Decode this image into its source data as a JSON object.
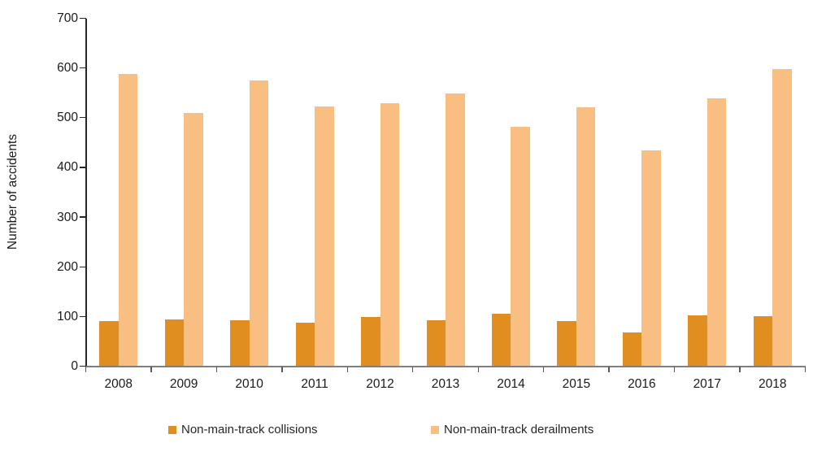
{
  "chart_data": {
    "type": "bar",
    "title": "",
    "xlabel": "",
    "ylabel": "Number of accidents",
    "ylim": [
      0,
      700
    ],
    "ytick_step": 100,
    "grid": "off",
    "legend_position": "bottom",
    "categories": [
      "2008",
      "2009",
      "2010",
      "2011",
      "2012",
      "2013",
      "2014",
      "2015",
      "2016",
      "2017",
      "2018"
    ],
    "series": [
      {
        "name": "Non-main-track collisions",
        "color": "#E08E20",
        "values": [
          91,
          94,
          92,
          88,
          99,
          92,
          105,
          91,
          68,
          102,
          100
        ]
      },
      {
        "name": "Non-main-track derailments",
        "color": "#F9BE82",
        "values": [
          588,
          509,
          575,
          523,
          529,
          549,
          481,
          521,
          434,
          539,
          598
        ]
      }
    ]
  }
}
